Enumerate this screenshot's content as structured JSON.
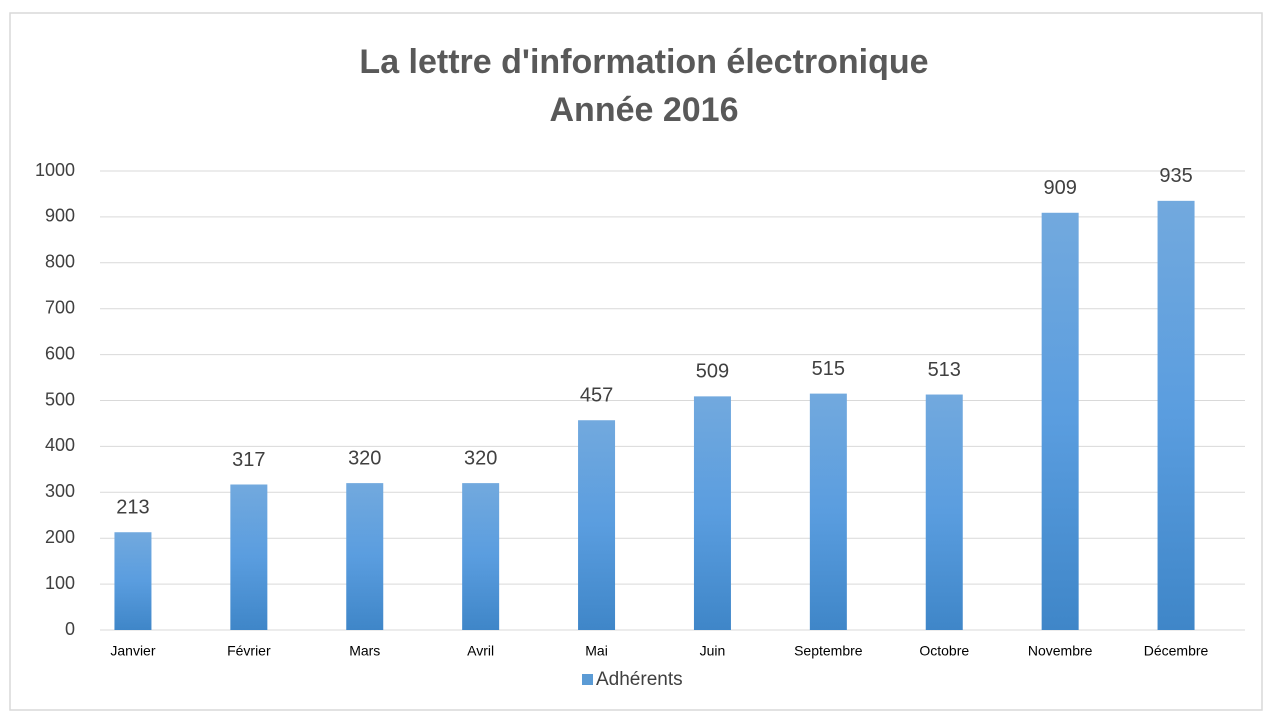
{
  "chart_data": {
    "type": "bar",
    "title": "La lettre d'information électronique",
    "subtitle": "Année 2016",
    "categories": [
      "Janvier",
      "Février",
      "Mars",
      "Avril",
      "Mai",
      "Juin",
      "Septembre",
      "Octobre",
      "Novembre",
      "Décembre"
    ],
    "series": [
      {
        "name": "Adhérents",
        "color": "#5b9bd5",
        "values": [
          213,
          317,
          320,
          320,
          457,
          509,
          515,
          513,
          909,
          935
        ]
      }
    ],
    "ylim": [
      0,
      1000
    ],
    "yticks": [
      0,
      100,
      200,
      300,
      400,
      500,
      600,
      700,
      800,
      900,
      1000
    ],
    "grid": true,
    "legend": "bottom"
  }
}
